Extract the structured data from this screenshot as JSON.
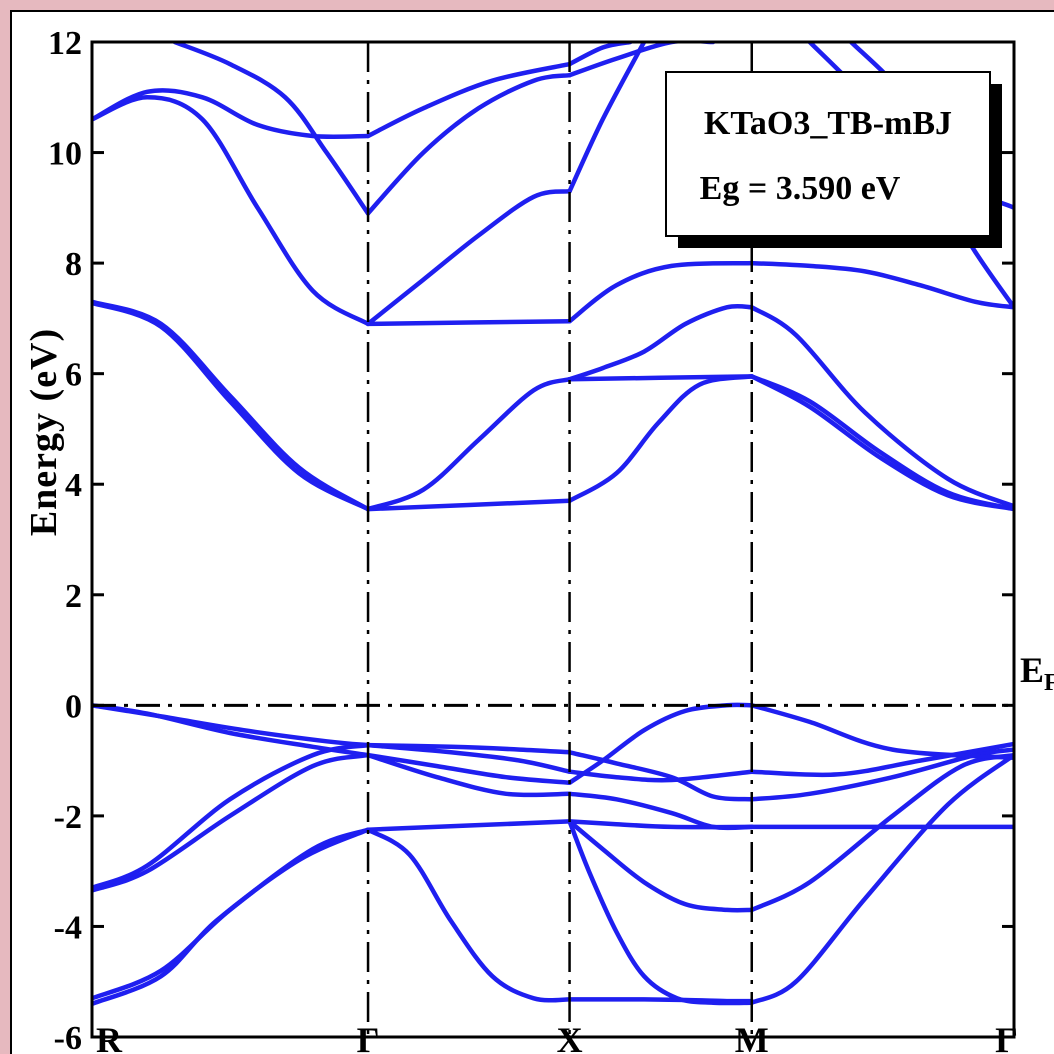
{
  "colors": {
    "band": "#1f1ff0",
    "page_border": "#e6b9bf"
  },
  "chart_data": {
    "type": "line",
    "title": "",
    "xlabel": "",
    "ylabel": "Energy (eV)",
    "ylim": [
      -6,
      12
    ],
    "yticks": [
      "12",
      "10",
      "8",
      "6",
      "4",
      "2",
      "0",
      "-2",
      "-4",
      "-6"
    ],
    "kpoints": [
      "R",
      "Γ",
      "X",
      "M",
      "Γ"
    ],
    "kpoint_positions": [
      0,
      1,
      1.73,
      2.39,
      3.34
    ],
    "fermi_label": "EF",
    "fermi_energy": 0,
    "legend": [
      "KTaO3_TB-mBJ",
      "Eg = 3.590 eV"
    ],
    "grid": false,
    "series": [
      {
        "x": [
          0,
          0.25,
          0.45,
          0.75,
          1.0
        ],
        "y": [
          -5.4,
          -4.9,
          -3.9,
          -2.8,
          -2.25
        ]
      },
      {
        "x": [
          0,
          0.25,
          0.5,
          0.8,
          1.0
        ],
        "y": [
          -5.3,
          -4.8,
          -3.7,
          -2.6,
          -2.25
        ]
      },
      {
        "x": [
          0,
          0.2,
          0.5,
          0.8,
          1.0
        ],
        "y": [
          -3.35,
          -3.0,
          -2.0,
          -1.1,
          -0.9
        ]
      },
      {
        "x": [
          0,
          0.2,
          0.5,
          0.8,
          1.0
        ],
        "y": [
          -3.3,
          -2.9,
          -1.7,
          -0.9,
          -0.72
        ]
      },
      {
        "x": [
          0,
          0.2,
          0.5,
          0.8,
          1.0
        ],
        "y": [
          0,
          -0.15,
          -0.5,
          -0.75,
          -0.9
        ]
      },
      {
        "x": [
          0,
          0.25,
          0.55,
          0.85,
          1.0
        ],
        "y": [
          0,
          -0.2,
          -0.45,
          -0.65,
          -0.72
        ]
      },
      {
        "x": [
          1.0,
          1.73
        ],
        "y": [
          -2.25,
          -2.1
        ]
      },
      {
        "x": [
          1.0,
          1.15,
          1.3,
          1.45,
          1.6,
          1.73
        ],
        "y": [
          -2.25,
          -2.7,
          -3.9,
          -4.9,
          -5.3,
          -5.32
        ]
      },
      {
        "x": [
          1.0,
          1.3,
          1.55,
          1.73
        ],
        "y": [
          -0.72,
          -0.75,
          -0.8,
          -0.85
        ]
      },
      {
        "x": [
          1.0,
          1.3,
          1.55,
          1.73
        ],
        "y": [
          -0.72,
          -0.85,
          -1.0,
          -1.2
        ]
      },
      {
        "x": [
          1.0,
          1.25,
          1.5,
          1.73
        ],
        "y": [
          -0.9,
          -1.3,
          -1.6,
          -1.6
        ]
      },
      {
        "x": [
          1.0,
          1.25,
          1.5,
          1.73
        ],
        "y": [
          -0.9,
          -1.1,
          -1.3,
          -1.4
        ]
      },
      {
        "x": [
          1.73,
          1.85,
          2.0,
          2.15,
          2.3,
          2.39
        ],
        "y": [
          -5.32,
          -5.32,
          -5.32,
          -5.33,
          -5.35,
          -5.35
        ]
      },
      {
        "x": [
          1.73,
          1.85,
          2.0,
          2.15,
          2.3,
          2.39
        ],
        "y": [
          -2.1,
          -2.6,
          -3.2,
          -3.6,
          -3.7,
          -3.7
        ]
      },
      {
        "x": [
          1.73,
          1.9,
          2.1,
          2.39
        ],
        "y": [
          -2.1,
          -2.15,
          -2.2,
          -2.2
        ]
      },
      {
        "x": [
          1.73,
          1.8,
          1.9,
          2.0,
          2.12,
          2.25,
          2.39
        ],
        "y": [
          -2.1,
          -3.0,
          -4.1,
          -4.9,
          -5.3,
          -5.38,
          -5.38
        ]
      },
      {
        "x": [
          1.73,
          1.9,
          2.1,
          2.25,
          2.39
        ],
        "y": [
          -0.85,
          -1.05,
          -1.3,
          -1.65,
          -1.7
        ]
      },
      {
        "x": [
          1.73,
          1.9,
          2.1,
          2.39
        ],
        "y": [
          -1.2,
          -1.3,
          -1.35,
          -1.2
        ]
      },
      {
        "x": [
          1.73,
          1.9,
          2.1,
          2.25,
          2.39
        ],
        "y": [
          -1.6,
          -1.7,
          -1.95,
          -2.2,
          -2.2
        ]
      },
      {
        "x": [
          1.73,
          1.85,
          2.0,
          2.15,
          2.3,
          2.39
        ],
        "y": [
          -1.4,
          -1.0,
          -0.45,
          -0.1,
          0,
          0
        ]
      },
      {
        "x": [
          2.39,
          2.55,
          2.8,
          3.1,
          3.34
        ],
        "y": [
          -5.38,
          -5.0,
          -3.5,
          -1.8,
          -0.9
        ]
      },
      {
        "x": [
          2.39,
          2.6,
          2.9,
          3.15,
          3.34
        ],
        "y": [
          -3.7,
          -3.2,
          -2.0,
          -1.1,
          -0.9
        ]
      },
      {
        "x": [
          2.39,
          2.6,
          2.9,
          3.34
        ],
        "y": [
          -2.2,
          -2.2,
          -2.2,
          -2.2
        ]
      },
      {
        "x": [
          2.39,
          2.6,
          2.9,
          3.2,
          3.34
        ],
        "y": [
          -1.7,
          -1.6,
          -1.3,
          -0.9,
          -0.8
        ]
      },
      {
        "x": [
          2.39,
          2.7,
          3.0,
          3.34
        ],
        "y": [
          -1.2,
          -1.25,
          -1.0,
          -0.7
        ]
      },
      {
        "x": [
          2.39,
          2.6,
          2.9,
          3.34
        ],
        "y": [
          0,
          -0.3,
          -0.8,
          -0.95
        ]
      },
      {
        "x": [
          0,
          0.25,
          0.5,
          0.75,
          1.0
        ],
        "y": [
          7.3,
          6.9,
          5.6,
          4.3,
          3.55
        ]
      },
      {
        "x": [
          0,
          0.25,
          0.5,
          0.75,
          1.0
        ],
        "y": [
          7.28,
          6.85,
          5.5,
          4.2,
          3.55
        ]
      },
      {
        "x": [
          1.0,
          1.73
        ],
        "y": [
          3.55,
          3.7
        ]
      },
      {
        "x": [
          1.0,
          1.2,
          1.4,
          1.6,
          1.73
        ],
        "y": [
          3.55,
          3.9,
          4.8,
          5.7,
          5.9
        ]
      },
      {
        "x": [
          1.73,
          2.39
        ],
        "y": [
          5.9,
          5.95
        ]
      },
      {
        "x": [
          1.73,
          1.9,
          2.05,
          2.2,
          2.39
        ],
        "y": [
          3.7,
          4.2,
          5.1,
          5.8,
          5.95
        ]
      },
      {
        "x": [
          1.73,
          1.85,
          2.0,
          2.15,
          2.3,
          2.39
        ],
        "y": [
          5.9,
          6.1,
          6.4,
          6.9,
          7.2,
          7.2
        ]
      },
      {
        "x": [
          2.39,
          2.6,
          2.85,
          3.1,
          3.34
        ],
        "y": [
          5.95,
          5.5,
          4.6,
          3.85,
          3.55
        ]
      },
      {
        "x": [
          2.39,
          2.6,
          2.85,
          3.1,
          3.34
        ],
        "y": [
          5.95,
          5.4,
          4.5,
          3.8,
          3.55
        ]
      },
      {
        "x": [
          2.39,
          2.55,
          2.8,
          3.1,
          3.34
        ],
        "y": [
          7.2,
          6.7,
          5.3,
          4.1,
          3.6
        ]
      },
      {
        "x": [
          1.0,
          1.73
        ],
        "y": [
          6.9,
          6.95
        ]
      },
      {
        "x": [
          1.0,
          1.2,
          1.4,
          1.6,
          1.73
        ],
        "y": [
          6.9,
          7.7,
          8.5,
          9.2,
          9.3
        ]
      },
      {
        "x": [
          1.73,
          1.9,
          2.1,
          2.39
        ],
        "y": [
          6.95,
          7.6,
          7.95,
          8.0
        ]
      },
      {
        "x": [
          2.39,
          2.6,
          2.8,
          3.0,
          3.2,
          3.34
        ],
        "y": [
          8.0,
          7.95,
          7.85,
          7.6,
          7.3,
          7.2
        ]
      },
      {
        "x": [
          0,
          0.2,
          0.4,
          0.6,
          0.8,
          1.0
        ],
        "y": [
          10.6,
          11.0,
          10.6,
          9.0,
          7.5,
          6.9
        ]
      },
      {
        "x": [
          0,
          0.2,
          0.4,
          0.6,
          0.8,
          1.0
        ],
        "y": [
          10.6,
          11.1,
          11.0,
          10.5,
          10.3,
          10.3
        ]
      },
      {
        "x": [
          0.3,
          0.5,
          0.7,
          0.85,
          1.0
        ],
        "y": [
          12.0,
          11.6,
          11.0,
          10.0,
          8.9
        ]
      },
      {
        "x": [
          1.0,
          1.2,
          1.4,
          1.6,
          1.73
        ],
        "y": [
          8.9,
          10.0,
          10.8,
          11.3,
          11.4
        ]
      },
      {
        "x": [
          1.0,
          1.2,
          1.45,
          1.73
        ],
        "y": [
          10.3,
          10.8,
          11.3,
          11.6
        ]
      },
      {
        "x": [
          1.73,
          1.85,
          2.0
        ],
        "y": [
          9.3,
          10.6,
          12.0
        ]
      },
      {
        "x": [
          1.73,
          1.9,
          2.1,
          2.25
        ],
        "y": [
          11.4,
          11.7,
          12.0,
          12.0
        ]
      },
      {
        "x": [
          1.73,
          1.85,
          1.95
        ],
        "y": [
          11.6,
          11.9,
          12.0
        ]
      },
      {
        "x": [
          2.6,
          2.8,
          3.0,
          3.2,
          3.34
        ],
        "y": [
          12.0,
          11.0,
          9.8,
          8.2,
          7.2
        ]
      },
      {
        "x": [
          2.75,
          2.95,
          3.15,
          3.34
        ],
        "y": [
          12.0,
          11.0,
          9.5,
          9.0
        ]
      }
    ]
  }
}
